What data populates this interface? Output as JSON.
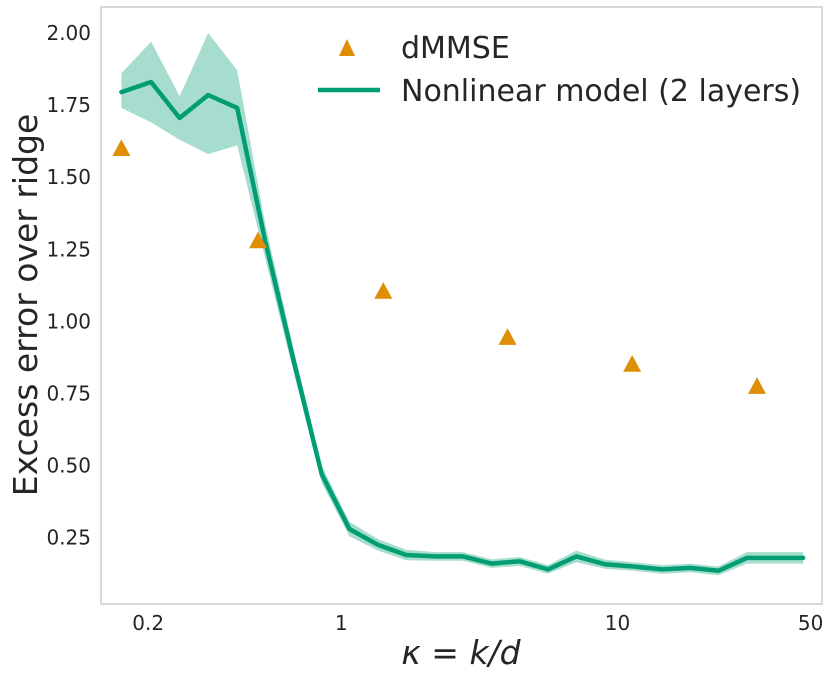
{
  "chart_data": {
    "type": "line",
    "title": "",
    "xlabel": "κ = k/d",
    "ylabel": "Excess error over ridge",
    "xscale": "log",
    "xlim": [
      0.135,
      55
    ],
    "ylim": [
      0.02,
      2.09
    ],
    "x_ticks": [
      0.2,
      1,
      10,
      50
    ],
    "x_tick_labels": [
      "0.2",
      "1",
      "10",
      "50"
    ],
    "y_ticks": [
      0.25,
      0.5,
      0.75,
      1.0,
      1.25,
      1.5,
      1.75,
      2.0
    ],
    "y_tick_labels": [
      "0.25",
      "0.50",
      "0.75",
      "1.00",
      "1.25",
      "1.50",
      "1.75",
      "2.00"
    ],
    "grid": false,
    "legend_position": "top-right",
    "colors": {
      "dmmse": "#de8f05",
      "nonlinear": "#029e73",
      "band": "#029e73",
      "frame": "#cccccc"
    },
    "series": [
      {
        "name": "dMMSE",
        "kind": "scatter",
        "marker": "triangle",
        "x": [
          0.16,
          0.5,
          1.42,
          4.0,
          11.3,
          32.0
        ],
        "y": [
          1.6,
          1.28,
          1.105,
          0.945,
          0.852,
          0.775
        ]
      },
      {
        "name": "Nonlinear model (2 layers)",
        "kind": "line",
        "x": [
          0.16,
          0.205,
          0.26,
          0.33,
          0.42,
          0.53,
          0.67,
          0.85,
          1.07,
          1.36,
          1.72,
          2.18,
          2.76,
          3.5,
          4.43,
          5.6,
          7.1,
          9.0,
          11.4,
          14.5,
          18.3,
          23.2,
          29.4,
          37.2,
          47.0
        ],
        "y": [
          1.795,
          1.83,
          1.705,
          1.785,
          1.74,
          1.28,
          0.87,
          0.47,
          0.28,
          0.225,
          0.19,
          0.185,
          0.185,
          0.16,
          0.168,
          0.14,
          0.185,
          0.158,
          0.15,
          0.14,
          0.145,
          0.135,
          0.18,
          0.18,
          0.18
        ],
        "band_lower": [
          1.74,
          1.69,
          1.63,
          1.58,
          1.61,
          1.22,
          0.83,
          0.44,
          0.255,
          0.205,
          0.172,
          0.17,
          0.17,
          0.145,
          0.152,
          0.125,
          0.165,
          0.142,
          0.135,
          0.125,
          0.13,
          0.12,
          0.16,
          0.16,
          0.16
        ],
        "band_upper": [
          1.86,
          1.97,
          1.78,
          2.0,
          1.87,
          1.34,
          0.91,
          0.5,
          0.305,
          0.245,
          0.208,
          0.2,
          0.2,
          0.175,
          0.183,
          0.155,
          0.205,
          0.174,
          0.165,
          0.155,
          0.16,
          0.15,
          0.2,
          0.2,
          0.2
        ]
      }
    ]
  }
}
